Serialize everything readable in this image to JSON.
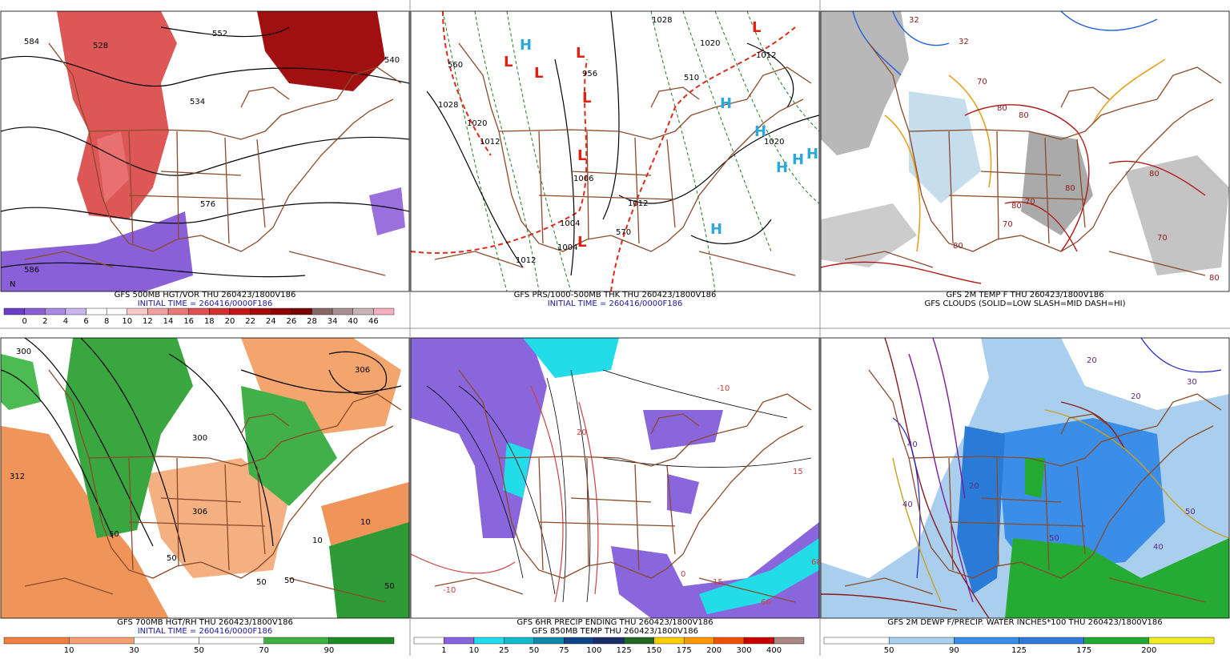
{
  "panels": [
    {
      "caption": [
        "GFS 500MB HGT/VOR THU 260423/1800V186",
        "INITIAL TIME = 260416/0000F186"
      ],
      "labels": [
        "584",
        "528",
        "552",
        "540",
        "534",
        "576",
        "586",
        "N"
      ],
      "colorbar": {
        "labels": [
          "0",
          "2",
          "4",
          "6",
          "8",
          "10",
          "12",
          "14",
          "16",
          "18",
          "20",
          "22",
          "24",
          "26",
          "28",
          "34",
          "40",
          "46"
        ],
        "colors": [
          "#6a3fc8",
          "#8a5fd6",
          "#a98ae2",
          "#c9b6ee",
          "#ffffff",
          "#ffffff",
          "#f6c8c8",
          "#f0a0a0",
          "#e87878",
          "#e05050",
          "#d43030",
          "#c41818",
          "#a80a0a",
          "#900000",
          "#780000",
          "#886666",
          "#aa9090",
          "#c8b4b4",
          "#f4b0c0"
        ]
      }
    },
    {
      "caption": [
        "GFS PRS/1000-500MB THK THU 260423/1800V186",
        "INITIAL TIME = 260416/0000F186"
      ],
      "labels": [
        "1028",
        "1020",
        "1012",
        "956",
        "1028",
        "1020",
        "1012",
        "1006",
        "1012",
        "1004",
        "1004",
        "1012",
        "570",
        "510",
        "560",
        "1020",
        "L",
        "L",
        "L",
        "L",
        "L",
        "L",
        "L",
        "H",
        "H",
        "H",
        "H",
        "H",
        "H",
        "H"
      ]
    },
    {
      "caption": [
        "GFS 2M TEMP F THU 260423/1800V186",
        "GFS CLOUDS (SOLID=LOW SLASH=MID DASH=HI)"
      ],
      "labels": [
        "32",
        "32",
        "70",
        "80",
        "80",
        "80",
        "70",
        "80",
        "70",
        "80",
        "80",
        "70",
        "80"
      ]
    },
    {
      "caption": [
        "GFS 700MB HGT/RH THU 260423/1800V186",
        "INITIAL TIME = 260416/0000F186"
      ],
      "labels": [
        "300",
        "306",
        "312",
        "300",
        "306",
        "50",
        "50",
        "50",
        "50",
        "10",
        "10",
        "50"
      ],
      "colorbar": {
        "labels": [
          "10",
          "30",
          "50",
          "70",
          "90"
        ],
        "colors": [
          "#f08040",
          "#f4a070",
          "#ffffff",
          "#ffffff",
          "#3cb040",
          "#1e8a28"
        ]
      }
    },
    {
      "caption": [
        "GFS 6HR PRECIP ENDING THU 260423/1800V186",
        "GFS 850MB TEMP THU 260423/1800V186"
      ],
      "labels": [
        "-10",
        "20",
        "-10",
        "15",
        "15",
        "68",
        "66",
        "0"
      ],
      "colorbar": {
        "labels": [
          "1",
          "10",
          "25",
          "50",
          "75",
          "100",
          "125",
          "150",
          "175",
          "200",
          "300",
          "400"
        ],
        "colors": [
          "#ffffff",
          "#8866dd",
          "#22ddee",
          "#11bbcc",
          "#1188aa",
          "#114488",
          "#1b2f6b",
          "#226622",
          "#ffcc00",
          "#ff9900",
          "#ee5500",
          "#cc0000",
          "#aa8888"
        ]
      }
    },
    {
      "caption": [
        "GFS 2M DEWP F/PRECIP. WATER INCHES*100 THU 260423/1800V186"
      ],
      "labels": [
        "20",
        "20",
        "30",
        "40",
        "20",
        "40",
        "50",
        "40",
        "50"
      ],
      "colorbar": {
        "labels": [
          "50",
          "90",
          "125",
          "175",
          "200"
        ],
        "colors": [
          "#ffffff",
          "#a8d0f0",
          "#3a8ee8",
          "#2f7ad8",
          "#22aa33",
          "#eeee22"
        ]
      }
    }
  ]
}
